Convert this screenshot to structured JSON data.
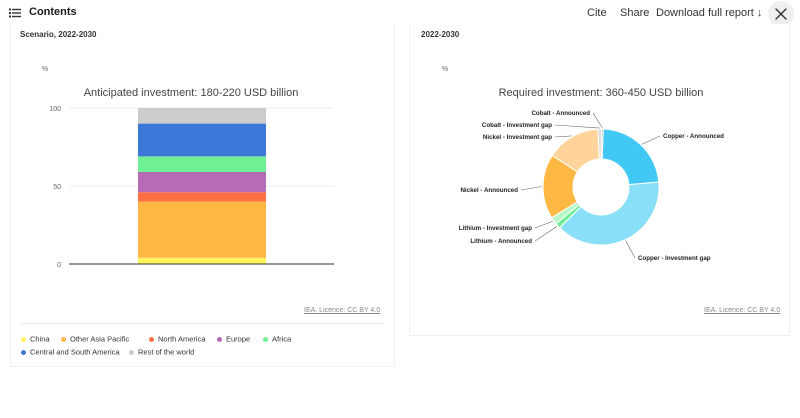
{
  "topbar": {
    "contents_label": "Contents",
    "cite_label": "Cite",
    "share_label": "Share",
    "download_label": "Download full report ↓"
  },
  "left_panel": {
    "subtitle": "Scenario, 2022-2030",
    "licence": "IEA. Licence: CC BY 4.0"
  },
  "right_panel": {
    "subtitle": "2022-2030",
    "licence": "IEA. Licence: CC BY 4.0"
  },
  "chart_data": [
    {
      "type": "bar",
      "stacked": true,
      "title": "Anticipated investment: 180-220 USD billion",
      "ylabel": "%",
      "ylim": [
        0,
        100
      ],
      "yticks": [
        0,
        50,
        100
      ],
      "categories": [
        ""
      ],
      "series": [
        {
          "name": "China",
          "values": [
            4
          ],
          "color": "#fff45f"
        },
        {
          "name": "Other Asia Pacific",
          "values": [
            36
          ],
          "color": "#ffb843"
        },
        {
          "name": "North America",
          "values": [
            6
          ],
          "color": "#ff6f43"
        },
        {
          "name": "Europe",
          "values": [
            13
          ],
          "color": "#b56bb5"
        },
        {
          "name": "Africa",
          "values": [
            10
          ],
          "color": "#6ff094"
        },
        {
          "name": "Central and South America",
          "values": [
            21
          ],
          "color": "#3c78d8"
        },
        {
          "name": "Rest of the world",
          "values": [
            10
          ],
          "color": "#cccccc"
        }
      ],
      "legend": "bottom"
    },
    {
      "type": "pie",
      "donut": true,
      "title": "Required investment: 360-450 USD billion",
      "ylabel": "%",
      "slices": [
        {
          "name": "Copper - Announced",
          "value": 23,
          "color": "#41c8f5"
        },
        {
          "name": "Copper - Investment gap",
          "value": 39,
          "color": "#8adff8"
        },
        {
          "name": "Lithium - Announced",
          "value": 1.5,
          "color": "#6ff094"
        },
        {
          "name": "Lithium - Investment gap",
          "value": 2,
          "color": "#b9f7c9"
        },
        {
          "name": "Nickel - Announced",
          "value": 18,
          "color": "#ffb843"
        },
        {
          "name": "Nickel - Investment gap",
          "value": 15,
          "color": "#ffd49a"
        },
        {
          "name": "Cobalt - Investment gap",
          "value": 1,
          "color": "#d9d9d9"
        },
        {
          "name": "Cobalt - Announced",
          "value": 0.5,
          "color": "#bbbbbb"
        }
      ]
    }
  ]
}
